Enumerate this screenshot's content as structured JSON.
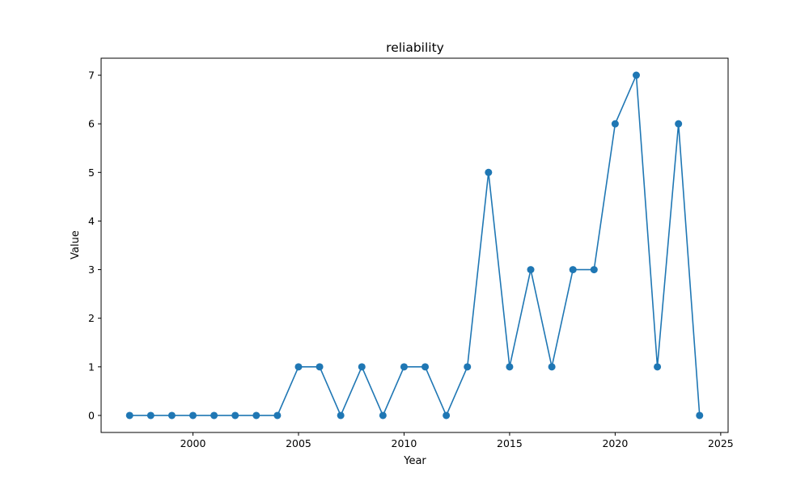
{
  "chart_data": {
    "type": "line",
    "title": "reliability",
    "xlabel": "Year",
    "ylabel": "Value",
    "xlim": [
      1995.65,
      2025.35
    ],
    "ylim": [
      -0.35,
      7.35
    ],
    "xticks": [
      2000,
      2005,
      2010,
      2015,
      2020,
      2025
    ],
    "yticks": [
      0,
      1,
      2,
      3,
      4,
      5,
      6,
      7
    ],
    "grid": false,
    "series_color": "#1f77b4",
    "series": [
      {
        "x": [
          1997,
          1998,
          1999,
          2000,
          2001,
          2002,
          2003,
          2004,
          2005,
          2006,
          2007,
          2008,
          2009,
          2010,
          2011,
          2012,
          2013,
          2014,
          2015,
          2016,
          2017,
          2018,
          2019,
          2020,
          2021,
          2022,
          2023,
          2024
        ],
        "values": [
          0,
          0,
          0,
          0,
          0,
          0,
          0,
          0,
          1,
          1,
          0,
          1,
          0,
          1,
          1,
          0,
          1,
          5,
          1,
          3,
          1,
          3,
          3,
          6,
          7,
          1,
          6,
          0
        ]
      }
    ]
  }
}
